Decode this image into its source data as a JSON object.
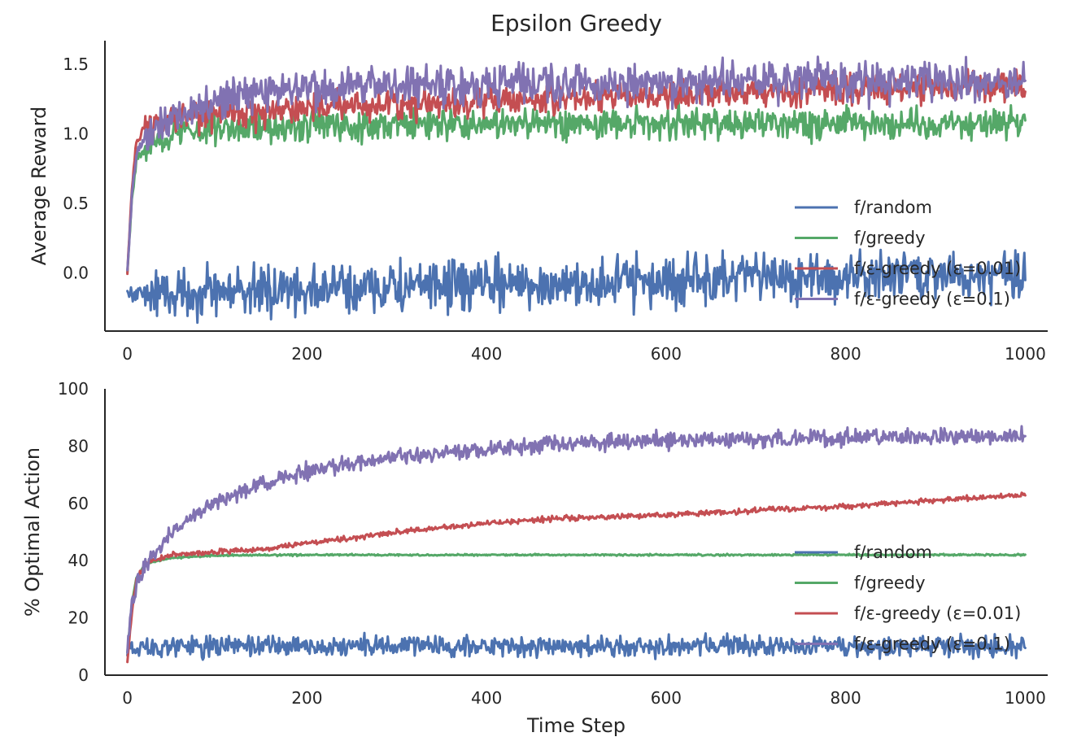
{
  "chart_data": [
    {
      "type": "line",
      "title": "Epsilon Greedy",
      "xlabel": "",
      "ylabel": "Average Reward",
      "xlim": [
        -25,
        1025
      ],
      "ylim": [
        -0.42,
        1.67
      ],
      "xticks": [
        0,
        200,
        400,
        600,
        800,
        1000
      ],
      "yticks": [
        0.0,
        0.5,
        1.0,
        1.5
      ],
      "ytick_labels": [
        "0.0",
        "0.5",
        "1.0",
        "1.5"
      ],
      "grid": false,
      "legend_position": "lower-right",
      "n_steps": 1000,
      "series": [
        {
          "name": "f/random",
          "color": "#4c72b0",
          "key_points": [
            [
              0,
              -0.15
            ],
            [
              1000,
              0.0
            ]
          ],
          "plateau": 0.0,
          "noise": 0.09
        },
        {
          "name": "f/greedy",
          "color": "#55a868",
          "key_points": [
            [
              0,
              0.0
            ],
            [
              5,
              0.55
            ],
            [
              10,
              0.8
            ],
            [
              20,
              0.9
            ],
            [
              50,
              1.0
            ],
            [
              100,
              1.04
            ],
            [
              200,
              1.06
            ],
            [
              400,
              1.07
            ],
            [
              1000,
              1.08
            ]
          ],
          "noise": 0.055
        },
        {
          "name": "f/ε-greedy (ε=0.01)",
          "color": "#c44e52",
          "key_points": [
            [
              0,
              0.0
            ],
            [
              5,
              0.6
            ],
            [
              10,
              0.95
            ],
            [
              20,
              1.05
            ],
            [
              50,
              1.1
            ],
            [
              100,
              1.14
            ],
            [
              200,
              1.19
            ],
            [
              400,
              1.24
            ],
            [
              600,
              1.28
            ],
            [
              800,
              1.32
            ],
            [
              1000,
              1.35
            ]
          ],
          "noise": 0.055
        },
        {
          "name": "f/ε-greedy (ε=0.1)",
          "color": "#8172b2",
          "key_points": [
            [
              0,
              0.0
            ],
            [
              5,
              0.55
            ],
            [
              10,
              0.85
            ],
            [
              20,
              0.98
            ],
            [
              50,
              1.12
            ],
            [
              100,
              1.25
            ],
            [
              150,
              1.3
            ],
            [
              200,
              1.33
            ],
            [
              300,
              1.35
            ],
            [
              400,
              1.36
            ],
            [
              600,
              1.37
            ],
            [
              1000,
              1.38
            ]
          ],
          "noise": 0.07
        }
      ]
    },
    {
      "type": "line",
      "title": "",
      "xlabel": "Time Step",
      "ylabel": "% Optimal Action",
      "xlim": [
        -25,
        1025
      ],
      "ylim": [
        0,
        100
      ],
      "xticks": [
        0,
        200,
        400,
        600,
        800,
        1000
      ],
      "yticks": [
        0,
        20,
        40,
        60,
        80,
        100
      ],
      "ytick_labels": [
        "0",
        "20",
        "40",
        "60",
        "80",
        "100"
      ],
      "grid": false,
      "legend_position": "lower-right",
      "n_steps": 1000,
      "series": [
        {
          "name": "f/random",
          "color": "#4c72b0",
          "key_points": [
            [
              0,
              10
            ],
            [
              1000,
              10
            ]
          ],
          "noise": 1.8
        },
        {
          "name": "f/greedy",
          "color": "#55a868",
          "key_points": [
            [
              0,
              8
            ],
            [
              5,
              25
            ],
            [
              10,
              34
            ],
            [
              20,
              39
            ],
            [
              50,
              41
            ],
            [
              100,
              41.8
            ],
            [
              200,
              42
            ],
            [
              1000,
              42
            ]
          ],
          "noise": 0.15
        },
        {
          "name": "f/ε-greedy (ε=0.01)",
          "color": "#c44e52",
          "key_points": [
            [
              0,
              5
            ],
            [
              5,
              22
            ],
            [
              10,
              33
            ],
            [
              20,
              39
            ],
            [
              50,
              42
            ],
            [
              100,
              43
            ],
            [
              150,
              44
            ],
            [
              200,
              46
            ],
            [
              300,
              50
            ],
            [
              400,
              53
            ],
            [
              500,
              55
            ],
            [
              600,
              56
            ],
            [
              700,
              57.5
            ],
            [
              800,
              59
            ],
            [
              900,
              61
            ],
            [
              1000,
              63
            ]
          ],
          "noise": 0.45
        },
        {
          "name": "f/ε-greedy (ε=0.1)",
          "color": "#8172b2",
          "key_points": [
            [
              0,
              10
            ],
            [
              5,
              24
            ],
            [
              10,
              32
            ],
            [
              20,
              39
            ],
            [
              50,
              50
            ],
            [
              100,
              61
            ],
            [
              150,
              67
            ],
            [
              200,
              71
            ],
            [
              250,
              74
            ],
            [
              300,
              76
            ],
            [
              400,
              79
            ],
            [
              500,
              81
            ],
            [
              600,
              82
            ],
            [
              700,
              82.5
            ],
            [
              800,
              83
            ],
            [
              1000,
              83
            ]
          ],
          "noise": 1.4
        }
      ]
    }
  ]
}
